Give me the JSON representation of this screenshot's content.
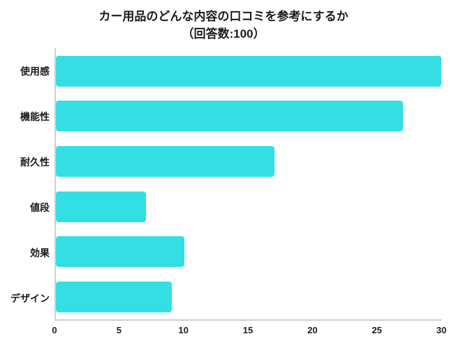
{
  "header": {
    "title": "カー用品のどんな内容の口コミを参考にするか",
    "subtitle": "（回答数:100）"
  },
  "chart_data": {
    "type": "bar",
    "orientation": "horizontal",
    "title": "カー用品のどんな内容の口コミを参考にするか",
    "subtitle": "（回答数:100）",
    "categories": [
      "使用感",
      "機能性",
      "耐久性",
      "値段",
      "効果",
      "デザイン"
    ],
    "values": [
      30,
      27,
      17,
      7,
      10,
      9
    ],
    "xlabel": "",
    "ylabel": "",
    "xlim": [
      0,
      30
    ],
    "xticks": [
      0,
      5,
      10,
      15,
      20,
      25,
      30
    ],
    "grid": false,
    "legend": false,
    "bar_color": "#33dfe3",
    "axis_line_color": "#cfcfcf",
    "text_color": "#1c1c1c",
    "background_color": "#ffffff"
  }
}
